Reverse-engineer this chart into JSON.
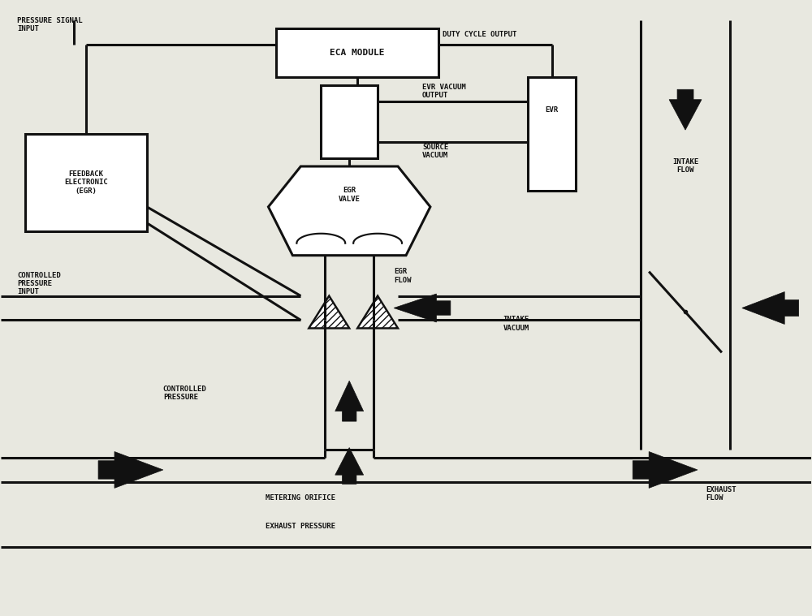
{
  "bg_color": "#e8e8e0",
  "line_color": "#111111",
  "lw": 2.2,
  "fig_width": 10.0,
  "fig_height": 7.59,
  "labels": {
    "pressure_signal": "PRESSURE SIGNAL\nINPUT",
    "eca_module": "ECA MODULE",
    "duty_cycle": "DUTY CYCLE OUTPUT",
    "feedback": "FEEDBACK\nELECTRONIC\n(EGR)",
    "evr_vacuum": "EVR VACUUM\nOUTPUT",
    "evr": "EVR",
    "intake_flow": "INTAKE\nFLOW",
    "egr_valve": "EGR\nVALVE",
    "source_vacuum": "SOURCE\nVACUUM",
    "egr_flow": "EGR\nFLOW",
    "intake_vacuum": "INTAKE\nVACUUM",
    "controlled_pressure_input": "CONTROLLED\nPRESSURE\nINPUT",
    "controlled_pressure": "CONTROLLED\nPRESSURE",
    "metering_orifice": "METERING ORIFICE",
    "exhaust_pressure": "EXHAUST PRESSURE",
    "exhaust_flow": "EXHAUST\nFLOW"
  }
}
